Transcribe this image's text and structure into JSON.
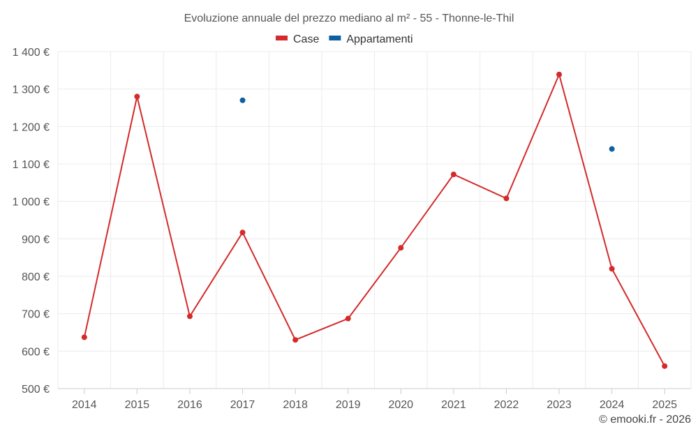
{
  "chart_data": {
    "type": "line",
    "title": "Evoluzione annuale del prezzo mediano al m² - 55 - Thonne-le-Thil",
    "categories": [
      "2014",
      "2015",
      "2016",
      "2017",
      "2018",
      "2019",
      "2020",
      "2021",
      "2022",
      "2023",
      "2024",
      "2025"
    ],
    "series": [
      {
        "name": "Case",
        "color": "#d42a2a",
        "values": [
          637,
          1280,
          693,
          917,
          630,
          687,
          876,
          1072,
          1008,
          1339,
          820,
          560
        ]
      },
      {
        "name": "Appartamenti",
        "color": "#0e5fa0",
        "values": [
          null,
          null,
          null,
          1270,
          null,
          null,
          null,
          null,
          null,
          null,
          1140,
          null
        ]
      }
    ],
    "ylim": [
      500,
      1400
    ],
    "yticks": [
      500,
      600,
      700,
      800,
      900,
      1000,
      1100,
      1200,
      1300,
      1400
    ],
    "ytick_labels": [
      "500 €",
      "600 €",
      "700 €",
      "800 €",
      "900 €",
      "1 000 €",
      "1 100 €",
      "1 200 €",
      "1 300 €",
      "1 400 €"
    ],
    "legend_position": "top-center",
    "grid": true
  },
  "credit": "© emooki.fr - 2026"
}
